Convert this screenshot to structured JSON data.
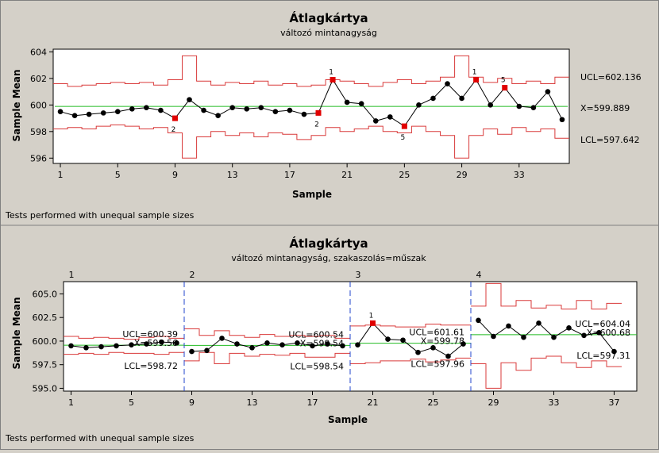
{
  "chart_data": [
    {
      "type": "line",
      "title": "Átlagkártya",
      "subtitle": "változó mintanagyság",
      "xlabel": "Sample",
      "ylabel": "Sample Mean",
      "footnote": "Tests performed with unequal sample sizes",
      "xlim": [
        0.5,
        36.5
      ],
      "ylim": [
        595.6,
        604.2
      ],
      "x_ticks": [
        1,
        5,
        9,
        13,
        17,
        21,
        25,
        29,
        33
      ],
      "y_ticks": [
        596,
        598,
        600,
        602,
        604
      ],
      "center_label": "X=599.889",
      "center": 599.889,
      "ucl_label": "UCL=602.136",
      "lcl_label": "LCL=597.642",
      "values": [
        599.5,
        599.2,
        599.3,
        599.4,
        599.5,
        599.7,
        599.8,
        599.6,
        599.0,
        600.4,
        599.6,
        599.2,
        599.8,
        599.7,
        599.8,
        599.5,
        599.6,
        599.3,
        599.4,
        601.9,
        600.2,
        600.1,
        598.8,
        599.1,
        598.4,
        600.0,
        600.5,
        601.6,
        600.5,
        601.9,
        600.0,
        601.3,
        599.9,
        599.8,
        601.0,
        598.9
      ],
      "ucl": [
        601.6,
        601.4,
        601.5,
        601.6,
        601.7,
        601.6,
        601.7,
        601.5,
        601.9,
        603.7,
        601.8,
        601.5,
        601.7,
        601.6,
        601.8,
        601.5,
        601.6,
        601.4,
        601.5,
        601.9,
        601.8,
        601.6,
        601.4,
        601.7,
        601.9,
        601.6,
        601.8,
        602.1,
        603.7,
        602.1,
        601.7,
        602.0,
        601.6,
        601.8,
        601.6,
        602.1
      ],
      "lcl": [
        598.2,
        598.3,
        598.2,
        598.4,
        598.5,
        598.4,
        598.2,
        598.3,
        597.9,
        596.0,
        597.6,
        598.0,
        597.7,
        597.9,
        597.6,
        597.9,
        597.8,
        597.4,
        597.7,
        598.3,
        598.0,
        598.2,
        598.4,
        598.0,
        597.9,
        598.4,
        598.0,
        597.7,
        596.0,
        597.7,
        598.2,
        597.8,
        598.3,
        598.0,
        598.2,
        597.5
      ],
      "flagged": [
        {
          "x": 9,
          "label": "2"
        },
        {
          "x": 19,
          "label": "2"
        },
        {
          "x": 20,
          "label": "1"
        },
        {
          "x": 25,
          "label": "5"
        },
        {
          "x": 30,
          "label": "1"
        },
        {
          "x": 32,
          "label": "5"
        }
      ]
    },
    {
      "type": "line",
      "title": "Átlagkártya",
      "subtitle": "változó mintanagyság, szakaszolás=műszak",
      "xlabel": "Sample",
      "ylabel": "Sample Mean",
      "footnote": "Tests performed with unequal sample sizes",
      "xlim": [
        0.5,
        38.5
      ],
      "ylim": [
        594.7,
        606.3
      ],
      "x_ticks": [
        1,
        5,
        9,
        13,
        17,
        21,
        25,
        29,
        33,
        37
      ],
      "y_ticks": [
        "595.0",
        "597.5",
        "600.0",
        "602.5",
        "605.0"
      ],
      "values": [
        599.5,
        599.3,
        599.4,
        599.5,
        599.6,
        599.7,
        599.9,
        599.8,
        598.9,
        599.0,
        600.3,
        599.7,
        599.3,
        599.8,
        599.6,
        599.8,
        599.5,
        599.7,
        599.5,
        599.6,
        601.9,
        600.2,
        600.1,
        598.8,
        599.3,
        598.4,
        599.7,
        602.2,
        600.5,
        601.6,
        600.4,
        601.9,
        600.4,
        601.4,
        600.6,
        600.9,
        598.9
      ],
      "ucl": [
        600.5,
        600.3,
        600.4,
        600.3,
        600.2,
        600.4,
        600.5,
        600.3,
        601.3,
        600.6,
        601.1,
        600.6,
        600.4,
        600.7,
        600.5,
        600.6,
        600.5,
        600.6,
        600.3,
        601.6,
        601.7,
        601.6,
        601.5,
        601.5,
        601.8,
        601.7,
        601.7,
        603.7,
        606.1,
        603.7,
        604.3,
        603.5,
        603.8,
        603.4,
        604.3,
        603.4,
        604.0
      ],
      "lcl": [
        598.6,
        598.7,
        598.6,
        598.8,
        598.7,
        598.7,
        598.6,
        598.8,
        597.9,
        598.8,
        597.6,
        598.7,
        598.4,
        598.6,
        598.5,
        598.7,
        598.3,
        598.3,
        598.7,
        597.6,
        597.7,
        597.9,
        597.9,
        598.1,
        597.8,
        598.0,
        598.2,
        597.6,
        595.0,
        597.7,
        596.9,
        598.2,
        598.4,
        597.7,
        597.2,
        597.9,
        597.3
      ],
      "flagged": [
        {
          "x": 21,
          "label": "1"
        }
      ],
      "stages": [
        {
          "label": "1",
          "start": 1,
          "end": 8,
          "center": 599.56,
          "center_label": "X=599.56",
          "ucl_label": "UCL=600.39",
          "lcl_label": "LCL=598.72"
        },
        {
          "label": "2",
          "start": 9,
          "end": 19,
          "center": 599.54,
          "center_label": "X=599.54",
          "ucl_label": "UCL=600.54",
          "lcl_label": "LCL=598.54"
        },
        {
          "label": "3",
          "start": 20,
          "end": 27,
          "center": 599.78,
          "center_label": "X=599.78",
          "ucl_label": "UCL=601.61",
          "lcl_label": "LCL=597.96"
        },
        {
          "label": "4",
          "start": 28,
          "end": 38,
          "center": 600.68,
          "center_label": "X=600.68",
          "ucl_label": "UCL=604.04",
          "lcl_label": "LCL=597.31"
        }
      ]
    }
  ],
  "colors": {
    "background": "#d4d0c8",
    "plot_bg": "#ffffff",
    "data": "#000000",
    "limits": "#d93a3a",
    "center": "#22bb22",
    "flag": "#e00000",
    "stage_divider": "#2244cc"
  }
}
